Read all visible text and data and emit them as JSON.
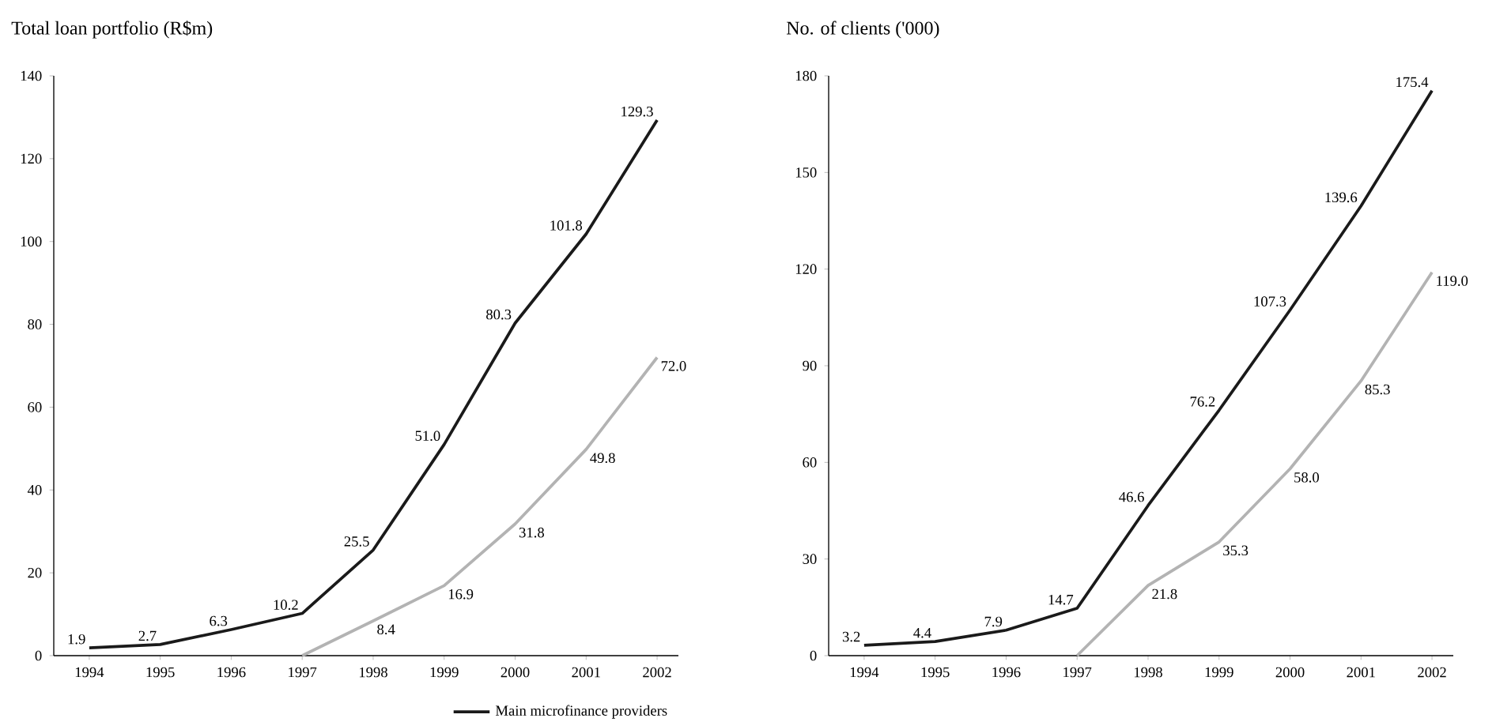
{
  "chart_data": [
    {
      "type": "line",
      "title": "Total loan portfolio (R$m)",
      "categories": [
        "1994",
        "1995",
        "1996",
        "1997",
        "1998",
        "1999",
        "2000",
        "2001",
        "2002"
      ],
      "ylim": [
        0,
        140
      ],
      "yticks": [
        0,
        20,
        40,
        60,
        80,
        100,
        120,
        140
      ],
      "legend": "bottom right",
      "series": [
        {
          "name": "Main microfinance providers",
          "color": "#1a1a1a",
          "values": [
            1.9,
            2.7,
            6.3,
            10.2,
            25.5,
            51.0,
            80.3,
            101.8,
            129.3
          ],
          "value_labels": [
            "1.9",
            "2.7",
            "6.3",
            "10.2",
            "25.5",
            "51.0",
            "80.3",
            "101.8",
            "129.3"
          ]
        },
        {
          "color": "#b3b3b3",
          "values": [
            null,
            null,
            null,
            0,
            8.4,
            16.9,
            31.8,
            49.8,
            72.0
          ],
          "value_labels": [
            null,
            null,
            null,
            null,
            "8.4",
            "16.9",
            "31.8",
            "49.8",
            "72.0"
          ]
        }
      ]
    },
    {
      "type": "line",
      "title": "No. of clients ('000)",
      "categories": [
        "1994",
        "1995",
        "1996",
        "1997",
        "1998",
        "1999",
        "2000",
        "2001",
        "2002"
      ],
      "ylim": [
        0,
        180
      ],
      "yticks": [
        0,
        30,
        60,
        90,
        120,
        150,
        180
      ],
      "series": [
        {
          "color": "#1a1a1a",
          "values": [
            3.2,
            4.4,
            7.9,
            14.7,
            46.6,
            76.2,
            107.3,
            139.6,
            175.4
          ],
          "value_labels": [
            "3.2",
            "4.4",
            "7.9",
            "14.7",
            "46.6",
            "76.2",
            "107.3",
            "139.6",
            "175.4"
          ]
        },
        {
          "color": "#b3b3b3",
          "values": [
            null,
            null,
            null,
            0,
            21.8,
            35.3,
            58.0,
            85.3,
            119.0
          ],
          "value_labels": [
            null,
            null,
            null,
            null,
            "21.8",
            "35.3",
            "58.0",
            "85.3",
            "119.0"
          ]
        }
      ]
    }
  ]
}
